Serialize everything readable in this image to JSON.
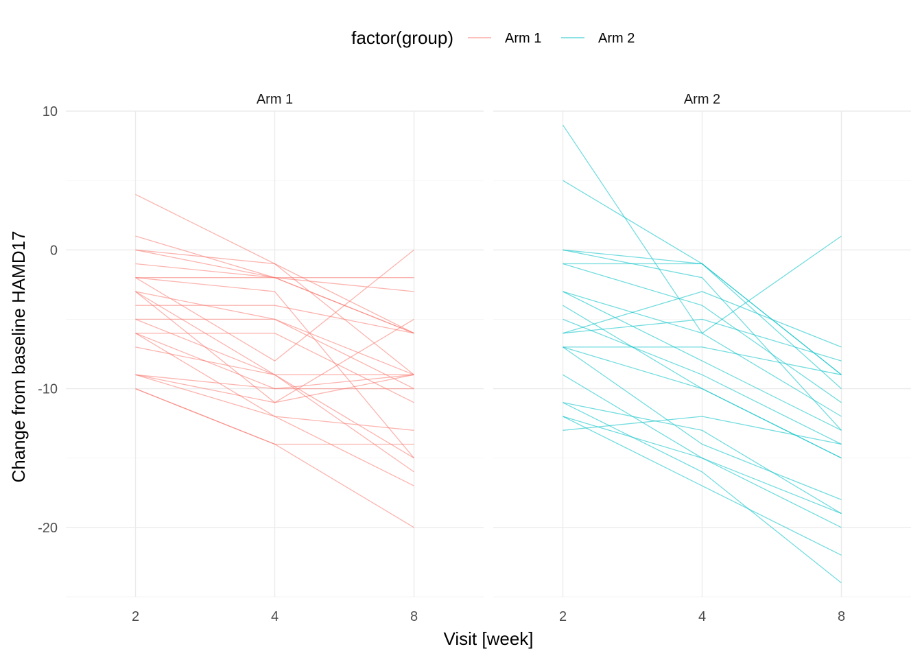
{
  "chart_data": {
    "type": "line",
    "xlabel": "Visit [week]",
    "ylabel": "Change from baseline HAMD17",
    "x_ticks": [
      "2",
      "4",
      "8"
    ],
    "y_ticks": [
      10,
      0,
      -10,
      -20
    ],
    "ylim": [
      -25,
      10
    ],
    "grid": true,
    "legend": {
      "title": "factor(group)",
      "position": "top",
      "items": [
        {
          "label": "Arm 1",
          "color": "#F8766D"
        },
        {
          "label": "Arm 2",
          "color": "#00BFC4"
        }
      ]
    },
    "panels": [
      {
        "label": "Arm 1",
        "color": "#F8766D",
        "lines": [
          [
            4,
            -1,
            -6
          ],
          [
            1,
            -2,
            -2
          ],
          [
            0,
            -1,
            -9
          ],
          [
            0,
            -2,
            -6
          ],
          [
            -1,
            -2,
            -3
          ],
          [
            -2,
            -2,
            -6
          ],
          [
            -2,
            -3,
            -15
          ],
          [
            -2,
            -8,
            0
          ],
          [
            -3,
            -5,
            -10
          ],
          [
            -3,
            -9,
            -9
          ],
          [
            -3,
            -11,
            -5
          ],
          [
            -4,
            -4,
            -6
          ],
          [
            -5,
            -5,
            -9
          ],
          [
            -5,
            -9,
            -16
          ],
          [
            -6,
            -6,
            -11
          ],
          [
            -6,
            -10,
            -9
          ],
          [
            -6,
            -12,
            -13
          ],
          [
            -7,
            -9,
            -15
          ],
          [
            -9,
            -11,
            -9
          ],
          [
            -9,
            -12,
            -17
          ],
          [
            -9,
            -10,
            -10
          ],
          [
            -10,
            -14,
            -14
          ],
          [
            -10,
            -14,
            -20
          ]
        ]
      },
      {
        "label": "Arm 2",
        "color": "#00BFC4",
        "lines": [
          [
            9,
            -6,
            1
          ],
          [
            5,
            -1,
            -9
          ],
          [
            0,
            -1,
            -10
          ],
          [
            0,
            -2,
            -13
          ],
          [
            -1,
            -1,
            -9
          ],
          [
            -1,
            -4,
            -11
          ],
          [
            -3,
            -6,
            -12
          ],
          [
            -3,
            -8,
            -13
          ],
          [
            -4,
            -10,
            -15
          ],
          [
            -5,
            -9,
            -14
          ],
          [
            -6,
            -3,
            -7
          ],
          [
            -6,
            -5,
            -8
          ],
          [
            -7,
            -7,
            -9
          ],
          [
            -7,
            -10,
            -15
          ],
          [
            -7,
            -14,
            -18
          ],
          [
            -9,
            -15,
            -19
          ],
          [
            -11,
            -13,
            -19
          ],
          [
            -11,
            -16,
            -24
          ],
          [
            -12,
            -15,
            -20
          ],
          [
            -12,
            -17,
            -22
          ],
          [
            -13,
            -12,
            -14
          ]
        ]
      }
    ]
  }
}
